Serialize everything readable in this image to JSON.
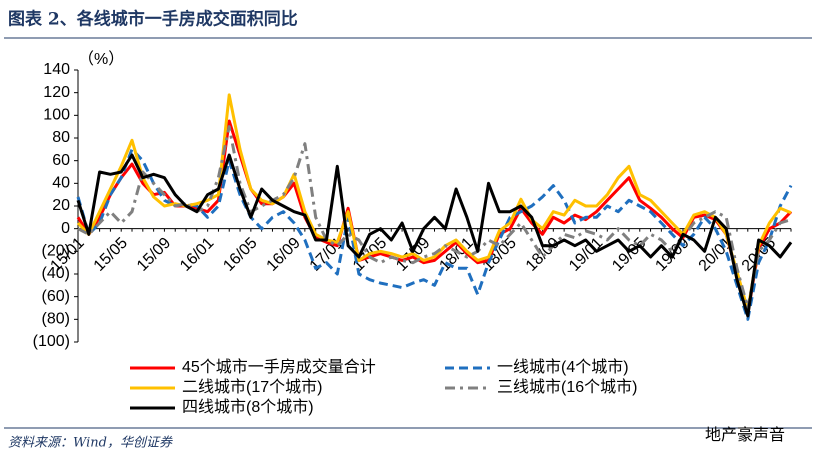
{
  "chart_data": {
    "type": "line",
    "title": "图表 2、各线城市一手房成交面积同比",
    "y_label": "（%）",
    "source": "资料来源：Wind，华创证券",
    "watermark": "地产豪声音",
    "categories": [
      "15/01",
      null,
      null,
      null,
      "15/05",
      null,
      null,
      null,
      "15/09",
      null,
      null,
      null,
      "16/01",
      null,
      null,
      null,
      "16/05",
      null,
      null,
      null,
      "16/09",
      null,
      null,
      null,
      "17/01",
      null,
      null,
      null,
      "17/05",
      null,
      null,
      null,
      "17/09",
      null,
      null,
      null,
      "18/01",
      null,
      null,
      null,
      "18/05",
      null,
      null,
      null,
      "18/09",
      null,
      null,
      null,
      "19/01",
      null,
      null,
      null,
      "19/05",
      null,
      null,
      null,
      "19/09",
      null,
      null,
      null,
      "20/01",
      null,
      null,
      null,
      "20/05",
      null,
      null
    ],
    "ylim": [
      -100,
      140
    ],
    "yticks": [
      140,
      120,
      100,
      80,
      60,
      40,
      20,
      0,
      {
        "value": -20,
        "label": "(20)"
      },
      {
        "value": -40,
        "label": "(40)"
      },
      {
        "value": -60,
        "label": "(60)"
      },
      {
        "value": -80,
        "label": "(80)"
      },
      {
        "value": -100,
        "label": "(100)"
      }
    ],
    "series": [
      {
        "name": "45个城市一手房成交量合计",
        "color": "#ff0000",
        "style": "solid",
        "values": [
          10,
          -5,
          10,
          30,
          45,
          57,
          40,
          30,
          32,
          20,
          20,
          18,
          15,
          25,
          95,
          65,
          35,
          22,
          22,
          28,
          40,
          10,
          -8,
          -12,
          -15,
          18,
          -28,
          -25,
          -22,
          -25,
          -28,
          -25,
          -30,
          -28,
          -20,
          -12,
          -22,
          -30,
          -28,
          -5,
          0,
          18,
          5,
          -5,
          10,
          5,
          12,
          8,
          15,
          25,
          35,
          45,
          25,
          18,
          10,
          0,
          -8,
          10,
          12,
          8,
          -5,
          -40,
          -75,
          -18,
          0,
          5,
          15
        ]
      },
      {
        "name": "一线城市(4个城市)",
        "color": "#1f6fbf",
        "style": "dashed",
        "values": [
          28,
          -5,
          5,
          30,
          45,
          70,
          60,
          40,
          25,
          20,
          22,
          20,
          10,
          20,
          60,
          30,
          10,
          0,
          10,
          15,
          5,
          -10,
          -35,
          -30,
          -40,
          10,
          -40,
          -45,
          -48,
          -50,
          -52,
          -48,
          -45,
          -50,
          -30,
          -35,
          -35,
          -58,
          -30,
          -10,
          10,
          15,
          20,
          28,
          38,
          25,
          5,
          10,
          10,
          20,
          15,
          25,
          20,
          15,
          5,
          -5,
          -15,
          -5,
          10,
          0,
          -20,
          -50,
          -80,
          -30,
          -10,
          20,
          38
        ]
      },
      {
        "name": "二线城市(17个城市)",
        "color": "#ffc000",
        "style": "solid",
        "values": [
          5,
          -5,
          15,
          35,
          55,
          78,
          45,
          28,
          20,
          22,
          20,
          22,
          25,
          30,
          118,
          70,
          35,
          25,
          22,
          28,
          48,
          15,
          -5,
          -10,
          -12,
          15,
          -28,
          -22,
          -20,
          -22,
          -25,
          -22,
          -28,
          -25,
          -15,
          -10,
          -20,
          -28,
          -25,
          -2,
          5,
          26,
          8,
          0,
          15,
          12,
          25,
          20,
          20,
          30,
          45,
          55,
          30,
          25,
          15,
          5,
          -5,
          12,
          15,
          10,
          -5,
          -38,
          -72,
          -15,
          5,
          18,
          14
        ]
      },
      {
        "name": "三线城市(16个城市)",
        "color": "#808080",
        "style": "dashdot",
        "values": [
          0,
          -5,
          5,
          15,
          5,
          15,
          50,
          40,
          30,
          20,
          22,
          15,
          20,
          45,
          90,
          40,
          15,
          20,
          25,
          30,
          45,
          75,
          10,
          -10,
          -15,
          -5,
          -10,
          -25,
          -30,
          -25,
          -28,
          -30,
          -25,
          -22,
          -15,
          -20,
          -25,
          -20,
          -10,
          -15,
          -5,
          5,
          -10,
          -25,
          -15,
          -5,
          -8,
          -2,
          -5,
          -10,
          0,
          -10,
          -15,
          -5,
          -10,
          -20,
          -8,
          5,
          10,
          15,
          10,
          -35,
          -70,
          -20,
          -10,
          5,
          8
        ]
      },
      {
        "name": "四线城市(8个城市)",
        "color": "#000000",
        "style": "solid",
        "values": [
          25,
          -5,
          50,
          48,
          50,
          65,
          45,
          48,
          45,
          30,
          20,
          15,
          30,
          35,
          65,
          35,
          10,
          35,
          25,
          20,
          15,
          12,
          -10,
          -10,
          55,
          -15,
          -25,
          -5,
          0,
          -10,
          5,
          -20,
          0,
          10,
          0,
          35,
          10,
          -20,
          40,
          15,
          15,
          20,
          10,
          -15,
          -15,
          -10,
          -15,
          -10,
          -20,
          -15,
          -10,
          -20,
          -15,
          -25,
          -15,
          -25,
          -5,
          -10,
          -20,
          10,
          0,
          -45,
          -77,
          -10,
          -15,
          -25,
          -12
        ]
      }
    ]
  }
}
